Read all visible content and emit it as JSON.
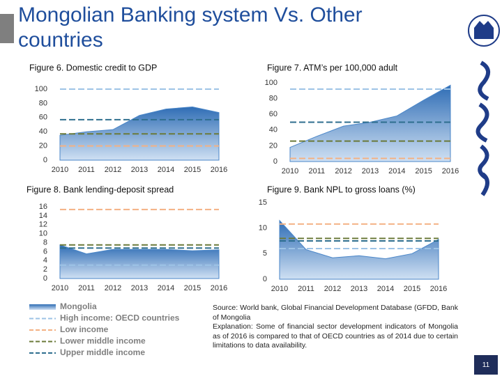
{
  "title": "Mongolian Banking system Vs. Other countries",
  "note": [
    "Source: World bank, Global Financial Development Database (GFDD, Bank of Mongolia",
    "Explanation: Some of financial sector development indicators of Mongolia as of 2016 is compared to that of OECD countries as of 2014 due to certain limitations to data availability."
  ],
  "page_number": "11",
  "chart_data": [
    {
      "type": "area",
      "title": "Figure 6. Domestic credit to GDP",
      "categories": [
        "2010",
        "2011",
        "2012",
        "2013",
        "2014",
        "2015",
        "2016"
      ],
      "ylim": [
        0,
        100
      ],
      "yticks": [
        0,
        20,
        40,
        60,
        80,
        100
      ],
      "series": [
        {
          "name": "Mongolia",
          "color": "#4a86c8",
          "values": [
            35,
            40,
            43,
            63,
            72,
            75,
            67
          ]
        },
        {
          "name": "High income: OECD countries",
          "color": "#9dc3e6",
          "values": [
            100,
            100,
            100,
            100,
            100,
            100,
            100
          ]
        },
        {
          "name": "Low income",
          "color": "#f4b183",
          "values": [
            20,
            20,
            20,
            20,
            20,
            20,
            20
          ]
        },
        {
          "name": "Lower middle income",
          "color": "#6b7a3a",
          "values": [
            37,
            37,
            37,
            37,
            37,
            37,
            37
          ]
        },
        {
          "name": "Upper middle income",
          "color": "#2e6e8e",
          "values": [
            57,
            57,
            57,
            57,
            57,
            57,
            57
          ]
        }
      ]
    },
    {
      "type": "area",
      "title": "Figure 7. ATM’s per 100,000 adult",
      "categories": [
        "2010",
        "2011",
        "2012",
        "2013",
        "2014",
        "2015",
        "2016"
      ],
      "ylim": [
        0,
        100
      ],
      "yticks": [
        0,
        20,
        40,
        60,
        80,
        100
      ],
      "series": [
        {
          "name": "Mongolia",
          "color": "#4a86c8",
          "values": [
            18,
            32,
            45,
            50,
            58,
            78,
            97
          ]
        },
        {
          "name": "High income: OECD countries",
          "color": "#9dc3e6",
          "values": [
            92,
            92,
            92,
            92,
            92,
            92,
            92
          ]
        },
        {
          "name": "Low income",
          "color": "#f4b183",
          "values": [
            4,
            4,
            4,
            4,
            4,
            4,
            4
          ]
        },
        {
          "name": "Lower middle income",
          "color": "#6b7a3a",
          "values": [
            26,
            26,
            26,
            26,
            26,
            26,
            26
          ]
        },
        {
          "name": "Upper middle income",
          "color": "#2e6e8e",
          "values": [
            50,
            50,
            50,
            50,
            50,
            50,
            50
          ]
        }
      ]
    },
    {
      "type": "area",
      "title": "Figure 8. Bank lending-deposit spread",
      "categories": [
        "2010",
        "2011",
        "2012",
        "2013",
        "2014",
        "2015",
        "2016"
      ],
      "ylim": [
        0,
        16
      ],
      "yticks": [
        0,
        2,
        4,
        6,
        8,
        10,
        12,
        14,
        16
      ],
      "series": [
        {
          "name": "Mongolia",
          "color": "#4a86c8",
          "values": [
            7.5,
            5.5,
            6.5,
            6.5,
            6.5,
            6.2,
            6.4
          ]
        },
        {
          "name": "High income: OECD countries",
          "color": "#9dc3e6",
          "values": [
            3,
            3,
            3,
            3,
            3,
            3,
            3
          ]
        },
        {
          "name": "Low income",
          "color": "#f4b183",
          "values": [
            15.4,
            15.4,
            15.4,
            15.4,
            15.4,
            15.4,
            15.4
          ]
        },
        {
          "name": "Lower middle income",
          "color": "#6b7a3a",
          "values": [
            7.5,
            7.5,
            7.5,
            7.5,
            7.5,
            7.5,
            7.5
          ]
        },
        {
          "name": "Upper middle income",
          "color": "#2e6e8e",
          "values": [
            6.8,
            6.8,
            6.8,
            6.8,
            6.8,
            6.8,
            6.8
          ]
        }
      ]
    },
    {
      "type": "area",
      "title": "Figure 9. Bank NPL to gross loans (%)",
      "categories": [
        "2010",
        "2011",
        "2012",
        "2013",
        "2014",
        "2015",
        "2016"
      ],
      "ylim": [
        0,
        15
      ],
      "yticks": [
        0,
        5,
        10,
        15
      ],
      "series": [
        {
          "name": "Mongolia",
          "color": "#4a86c8",
          "values": [
            11.5,
            5.8,
            4.2,
            4.6,
            4,
            5,
            7.8
          ]
        },
        {
          "name": "High income: OECD countries",
          "color": "#9dc3e6",
          "values": [
            6,
            6,
            6,
            6,
            6,
            6,
            6
          ]
        },
        {
          "name": "Low income",
          "color": "#f4b183",
          "values": [
            10.8,
            10.8,
            10.8,
            10.8,
            10.8,
            10.8,
            10.8
          ]
        },
        {
          "name": "Lower middle income",
          "color": "#6b7a3a",
          "values": [
            8,
            8,
            8,
            8,
            8,
            8,
            8
          ]
        },
        {
          "name": "Upper middle income",
          "color": "#2e6e8e",
          "values": [
            7.5,
            7.5,
            7.5,
            7.5,
            7.5,
            7.5,
            7.5
          ]
        }
      ]
    }
  ]
}
